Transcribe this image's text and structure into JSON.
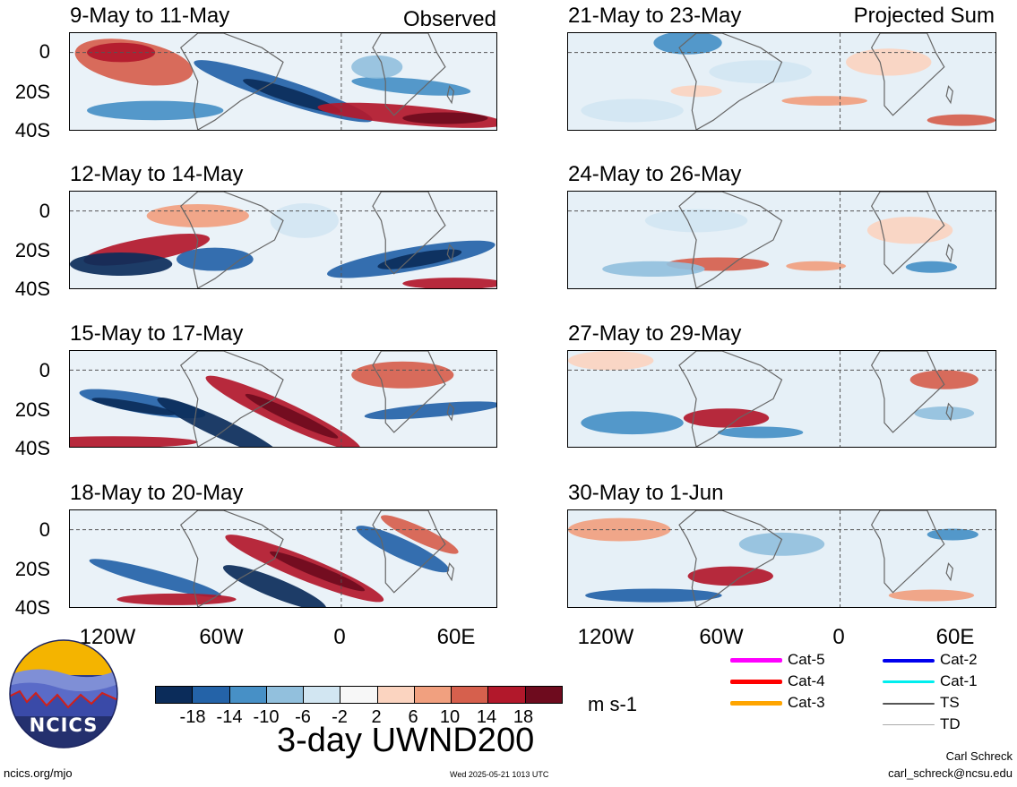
{
  "headers": {
    "observed": "Observed",
    "projected": "Projected Sum"
  },
  "panels_left": [
    {
      "title": "9-May to 11-May"
    },
    {
      "title": "12-May to 14-May"
    },
    {
      "title": "15-May to 17-May"
    },
    {
      "title": "18-May to 20-May"
    }
  ],
  "panels_right": [
    {
      "title": "21-May to 23-May"
    },
    {
      "title": "24-May to 26-May"
    },
    {
      "title": "27-May to 29-May"
    },
    {
      "title": "30-May to 1-Jun"
    }
  ],
  "lat_labels": [
    "0",
    "20S",
    "40S"
  ],
  "lon_labels": [
    "120W",
    "60W",
    "0",
    "60E"
  ],
  "colorbar": {
    "labels": [
      "-18",
      "-14",
      "-10",
      "-6",
      "-2",
      "2",
      "6",
      "10",
      "14",
      "18"
    ],
    "colors": [
      "#0b2c5a",
      "#2463a8",
      "#4790c6",
      "#92c0dd",
      "#d2e6f2",
      "#f7f7f7",
      "#fbd4c0",
      "#f1a07f",
      "#d6604d",
      "#b2182b",
      "#6e0b1e"
    ],
    "units": "m s-1"
  },
  "title": "3-day UWND200",
  "legend": [
    {
      "label": "Cat-5",
      "color": "#ff00ff"
    },
    {
      "label": "Cat-2",
      "color": "#0000ee"
    },
    {
      "label": "Cat-4",
      "color": "#ff0000"
    },
    {
      "label": "Cat-1",
      "color": "#00eeee"
    },
    {
      "label": "Cat-3",
      "color": "#ffa500"
    },
    {
      "label": "TS",
      "color": "#555555"
    },
    {
      "label": "TD",
      "color": "#aaaaaa"
    }
  ],
  "logo": {
    "text": "NCICS"
  },
  "footer": {
    "left": "ncics.org/mjo",
    "center": "Wed 2025-05-21 1013 UTC",
    "author": "Carl Schreck",
    "email": "carl_schreck@ncsu.edu"
  }
}
